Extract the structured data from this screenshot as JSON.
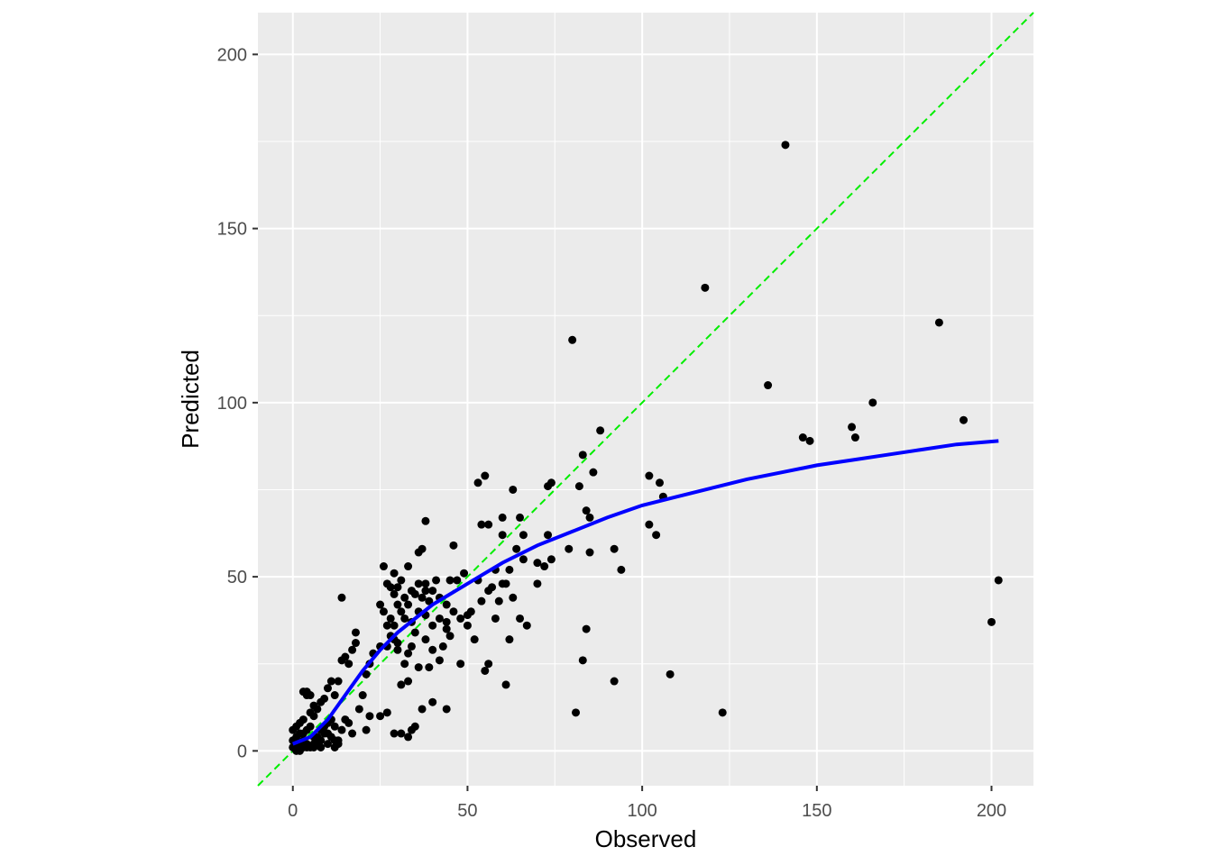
{
  "chart_data": {
    "type": "scatter",
    "title": "",
    "xlabel": "Observed",
    "ylabel": "Predicted",
    "xlim": [
      -10,
      212
    ],
    "ylim": [
      -10,
      212
    ],
    "x_ticks": [
      0,
      50,
      100,
      150,
      200
    ],
    "y_ticks": [
      0,
      50,
      100,
      150,
      200
    ],
    "grid": true,
    "legend": "none",
    "colors": {
      "panel": "#ebebeb",
      "grid": "#ffffff",
      "points": "#000000",
      "smooth": "#0000ff",
      "identity": "#00ee00"
    },
    "identity_line": {
      "slope": 1,
      "intercept": 0,
      "style": "dashed"
    },
    "series": [
      {
        "type": "scatter",
        "points": [
          [
            141,
            174
          ],
          [
            118,
            133
          ],
          [
            80,
            118
          ],
          [
            185,
            123
          ],
          [
            136,
            105
          ],
          [
            166,
            100
          ],
          [
            160,
            93
          ],
          [
            161,
            90
          ],
          [
            146,
            90
          ],
          [
            148,
            89
          ],
          [
            192,
            95
          ],
          [
            202,
            49
          ],
          [
            200,
            37
          ],
          [
            123,
            11
          ],
          [
            108,
            22
          ],
          [
            92,
            20
          ],
          [
            81,
            11
          ],
          [
            83,
            26
          ],
          [
            84,
            35
          ],
          [
            85,
            57
          ],
          [
            92,
            58
          ],
          [
            94,
            52
          ],
          [
            102,
            79
          ],
          [
            105,
            77
          ],
          [
            106,
            73
          ],
          [
            102,
            65
          ],
          [
            104,
            62
          ],
          [
            83,
            85
          ],
          [
            88,
            92
          ],
          [
            86,
            80
          ],
          [
            84,
            69
          ],
          [
            85,
            67
          ],
          [
            79,
            58
          ],
          [
            74,
            77
          ],
          [
            73,
            76
          ],
          [
            82,
            76
          ],
          [
            55,
            79
          ],
          [
            53,
            77
          ],
          [
            63,
            75
          ],
          [
            60,
            67
          ],
          [
            56,
            65
          ],
          [
            54,
            65
          ],
          [
            65,
            67
          ],
          [
            60,
            62
          ],
          [
            66,
            62
          ],
          [
            73,
            62
          ],
          [
            74,
            55
          ],
          [
            72,
            53
          ],
          [
            70,
            54
          ],
          [
            64,
            58
          ],
          [
            66,
            55
          ],
          [
            70,
            48
          ],
          [
            62,
            52
          ],
          [
            60,
            48
          ],
          [
            57,
            47
          ],
          [
            58,
            52
          ],
          [
            61,
            48
          ],
          [
            56,
            46
          ],
          [
            54,
            43
          ],
          [
            59,
            43
          ],
          [
            63,
            44
          ],
          [
            65,
            38
          ],
          [
            67,
            36
          ],
          [
            53,
            49
          ],
          [
            49,
            51
          ],
          [
            47,
            49
          ],
          [
            45,
            49
          ],
          [
            44,
            42
          ],
          [
            41,
            49
          ],
          [
            40,
            46
          ],
          [
            38,
            48
          ],
          [
            39,
            43
          ],
          [
            37,
            44
          ],
          [
            36,
            48
          ],
          [
            38,
            46
          ],
          [
            42,
            44
          ],
          [
            36,
            57
          ],
          [
            37,
            58
          ],
          [
            38,
            66
          ],
          [
            46,
            59
          ],
          [
            33,
            53
          ],
          [
            31,
            49
          ],
          [
            30,
            47
          ],
          [
            29,
            51
          ],
          [
            26,
            53
          ],
          [
            27,
            48
          ],
          [
            28,
            47
          ],
          [
            29,
            45
          ],
          [
            30,
            42
          ],
          [
            31,
            40
          ],
          [
            32,
            44
          ],
          [
            34,
            46
          ],
          [
            35,
            45
          ],
          [
            33,
            42
          ],
          [
            32,
            38
          ],
          [
            34,
            37
          ],
          [
            36,
            40
          ],
          [
            38,
            39
          ],
          [
            40,
            36
          ],
          [
            42,
            38
          ],
          [
            44,
            37
          ],
          [
            46,
            40
          ],
          [
            48,
            38
          ],
          [
            50,
            39
          ],
          [
            51,
            40
          ],
          [
            50,
            36
          ],
          [
            52,
            32
          ],
          [
            48,
            25
          ],
          [
            55,
            23
          ],
          [
            56,
            25
          ],
          [
            61,
            19
          ],
          [
            58,
            38
          ],
          [
            62,
            32
          ],
          [
            44,
            35
          ],
          [
            45,
            33
          ],
          [
            43,
            30
          ],
          [
            42,
            26
          ],
          [
            39,
            24
          ],
          [
            36,
            24
          ],
          [
            33,
            20
          ],
          [
            31,
            19
          ],
          [
            40,
            29
          ],
          [
            38,
            32
          ],
          [
            35,
            34
          ],
          [
            34,
            30
          ],
          [
            33,
            28
          ],
          [
            32,
            25
          ],
          [
            30,
            29
          ],
          [
            29,
            32
          ],
          [
            28,
            33
          ],
          [
            27,
            36
          ],
          [
            26,
            40
          ],
          [
            25,
            42
          ],
          [
            28,
            38
          ],
          [
            29,
            36
          ],
          [
            30,
            31
          ],
          [
            27,
            30
          ],
          [
            25,
            30
          ],
          [
            23,
            28
          ],
          [
            22,
            25
          ],
          [
            21,
            22
          ],
          [
            18,
            34
          ],
          [
            18,
            31
          ],
          [
            17,
            29
          ],
          [
            14,
            26
          ],
          [
            15,
            27
          ],
          [
            16,
            25
          ],
          [
            13,
            20
          ],
          [
            11,
            20
          ],
          [
            10,
            18
          ],
          [
            12,
            16
          ],
          [
            9,
            15
          ],
          [
            8,
            14
          ],
          [
            7,
            12
          ],
          [
            6,
            13
          ],
          [
            5,
            16
          ],
          [
            4,
            16
          ],
          [
            4,
            17
          ],
          [
            3,
            17
          ],
          [
            6,
            10
          ],
          [
            5,
            11
          ],
          [
            3,
            9
          ],
          [
            2,
            8
          ],
          [
            1,
            7
          ],
          [
            0,
            6
          ],
          [
            1,
            4
          ],
          [
            2,
            5
          ],
          [
            3,
            3
          ],
          [
            4,
            6
          ],
          [
            5,
            7
          ],
          [
            6,
            4
          ],
          [
            7,
            2
          ],
          [
            8,
            3
          ],
          [
            9,
            5
          ],
          [
            10,
            8
          ],
          [
            11,
            4
          ],
          [
            12,
            3
          ],
          [
            13,
            2
          ],
          [
            14,
            6
          ],
          [
            15,
            9
          ],
          [
            16,
            8
          ],
          [
            17,
            5
          ],
          [
            19,
            12
          ],
          [
            20,
            16
          ],
          [
            22,
            10
          ],
          [
            21,
            6
          ],
          [
            25,
            10
          ],
          [
            27,
            11
          ],
          [
            29,
            5
          ],
          [
            31,
            5
          ],
          [
            33,
            4
          ],
          [
            34,
            6
          ],
          [
            35,
            7
          ],
          [
            37,
            12
          ],
          [
            40,
            14
          ],
          [
            44,
            12
          ],
          [
            14,
            44
          ],
          [
            0,
            1
          ],
          [
            1,
            1
          ],
          [
            2,
            2
          ],
          [
            0,
            3
          ],
          [
            1,
            2
          ],
          [
            2,
            1
          ],
          [
            3,
            1
          ],
          [
            4,
            2
          ],
          [
            5,
            1
          ],
          [
            6,
            2
          ],
          [
            7,
            4
          ],
          [
            8,
            6
          ],
          [
            9,
            7
          ],
          [
            10,
            5
          ],
          [
            11,
            9
          ],
          [
            12,
            7
          ],
          [
            13,
            3
          ],
          [
            1,
            0
          ],
          [
            2,
            0
          ],
          [
            4,
            1
          ],
          [
            6,
            1
          ],
          [
            8,
            1
          ],
          [
            10,
            2
          ],
          [
            12,
            1
          ],
          [
            3,
            5
          ]
        ]
      },
      {
        "type": "line",
        "name": "",
        "points": [
          [
            0,
            2
          ],
          [
            5,
            4
          ],
          [
            10,
            9
          ],
          [
            15,
            16
          ],
          [
            20,
            23
          ],
          [
            25,
            29
          ],
          [
            30,
            34
          ],
          [
            35,
            38
          ],
          [
            40,
            42
          ],
          [
            45,
            45
          ],
          [
            50,
            48
          ],
          [
            55,
            51
          ],
          [
            60,
            54
          ],
          [
            70,
            59
          ],
          [
            80,
            63
          ],
          [
            90,
            67
          ],
          [
            100,
            70.5
          ],
          [
            110,
            73
          ],
          [
            120,
            75.5
          ],
          [
            130,
            78
          ],
          [
            140,
            80
          ],
          [
            150,
            82
          ],
          [
            160,
            83.5
          ],
          [
            170,
            85
          ],
          [
            180,
            86.5
          ],
          [
            190,
            88
          ],
          [
            202,
            89
          ]
        ]
      }
    ]
  }
}
